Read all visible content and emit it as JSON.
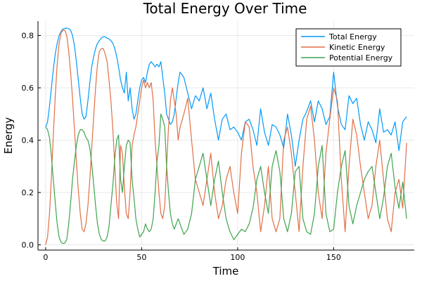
{
  "chart_data": {
    "type": "line",
    "title": "Total Energy Over Time",
    "xlabel": "Time",
    "ylabel": "Energy",
    "xlim": [
      -4,
      192
    ],
    "ylim": [
      -0.02,
      0.855
    ],
    "xticks": [
      0,
      50,
      100,
      150
    ],
    "xtick_labels": [
      "0",
      "50",
      "100",
      "150"
    ],
    "yticks": [
      0.0,
      0.2,
      0.4,
      0.6,
      0.8
    ],
    "ytick_labels": [
      "0.0",
      "0.2",
      "0.4",
      "0.6",
      "0.8"
    ],
    "grid": true,
    "legend_position": "top-right",
    "series": [
      {
        "name": "Total Energy",
        "color": "#009AF9",
        "x": [
          0,
          1,
          2,
          3,
          4,
          5,
          6,
          7,
          8,
          9,
          10,
          11,
          12,
          13,
          14,
          15,
          16,
          17,
          18,
          19,
          20,
          21,
          22,
          23,
          24,
          25,
          26,
          27,
          28,
          29,
          30,
          31,
          32,
          33,
          34,
          35,
          36,
          37,
          38,
          39,
          40,
          41,
          42,
          43,
          44,
          45,
          46,
          47,
          48,
          49,
          50,
          51,
          52,
          53,
          54,
          55,
          56,
          57,
          58,
          59,
          60,
          61,
          62,
          63,
          64,
          65,
          66,
          67,
          68,
          69,
          70,
          72,
          74,
          76,
          78,
          80,
          82,
          84,
          86,
          88,
          90,
          92,
          94,
          96,
          98,
          100,
          102,
          104,
          106,
          108,
          110,
          112,
          114,
          116,
          118,
          120,
          122,
          124,
          126,
          128,
          130,
          132,
          134,
          136,
          138,
          140,
          142,
          144,
          146,
          148,
          150,
          152,
          154,
          156,
          158,
          160,
          162,
          164,
          166,
          168,
          170,
          172,
          174,
          176,
          178,
          180,
          182,
          184,
          186,
          188
        ],
        "values": [
          0.45,
          0.47,
          0.53,
          0.6,
          0.67,
          0.73,
          0.77,
          0.8,
          0.815,
          0.825,
          0.827,
          0.828,
          0.826,
          0.82,
          0.8,
          0.76,
          0.7,
          0.63,
          0.56,
          0.5,
          0.48,
          0.49,
          0.55,
          0.62,
          0.68,
          0.72,
          0.75,
          0.77,
          0.78,
          0.79,
          0.795,
          0.795,
          0.79,
          0.787,
          0.78,
          0.77,
          0.75,
          0.72,
          0.68,
          0.63,
          0.6,
          0.58,
          0.66,
          0.55,
          0.6,
          0.52,
          0.48,
          0.5,
          0.55,
          0.6,
          0.63,
          0.64,
          0.62,
          0.66,
          0.69,
          0.7,
          0.69,
          0.68,
          0.69,
          0.68,
          0.7,
          0.64,
          0.58,
          0.5,
          0.48,
          0.46,
          0.47,
          0.5,
          0.56,
          0.62,
          0.66,
          0.64,
          0.58,
          0.52,
          0.57,
          0.55,
          0.6,
          0.52,
          0.58,
          0.48,
          0.4,
          0.48,
          0.5,
          0.44,
          0.45,
          0.43,
          0.4,
          0.47,
          0.48,
          0.44,
          0.38,
          0.52,
          0.43,
          0.38,
          0.46,
          0.45,
          0.42,
          0.37,
          0.5,
          0.42,
          0.3,
          0.4,
          0.48,
          0.51,
          0.55,
          0.47,
          0.55,
          0.52,
          0.46,
          0.49,
          0.66,
          0.53,
          0.46,
          0.44,
          0.57,
          0.54,
          0.56,
          0.46,
          0.4,
          0.47,
          0.44,
          0.39,
          0.52,
          0.43,
          0.44,
          0.42,
          0.47,
          0.36,
          0.47,
          0.49
        ]
      },
      {
        "name": "Kinetic Energy",
        "color": "#E26F46",
        "x": [
          0,
          1,
          2,
          3,
          4,
          5,
          6,
          7,
          8,
          9,
          10,
          11,
          12,
          13,
          14,
          15,
          16,
          17,
          18,
          19,
          20,
          21,
          22,
          23,
          24,
          25,
          26,
          27,
          28,
          29,
          30,
          31,
          32,
          33,
          34,
          35,
          36,
          37,
          38,
          39,
          40,
          41,
          42,
          43,
          44,
          45,
          46,
          47,
          48,
          49,
          50,
          51,
          52,
          53,
          54,
          55,
          56,
          57,
          58,
          59,
          60,
          61,
          62,
          63,
          64,
          65,
          66,
          67,
          68,
          69,
          70,
          72,
          74,
          76,
          78,
          80,
          82,
          84,
          86,
          88,
          90,
          92,
          94,
          96,
          98,
          100,
          102,
          104,
          106,
          108,
          110,
          112,
          114,
          116,
          118,
          120,
          122,
          124,
          126,
          128,
          130,
          132,
          134,
          136,
          138,
          140,
          142,
          144,
          146,
          148,
          150,
          152,
          154,
          156,
          158,
          160,
          162,
          164,
          166,
          168,
          170,
          172,
          174,
          176,
          178,
          180,
          182,
          184,
          186,
          188
        ],
        "values": [
          0.0,
          0.03,
          0.12,
          0.26,
          0.42,
          0.57,
          0.69,
          0.77,
          0.81,
          0.82,
          0.82,
          0.8,
          0.74,
          0.66,
          0.56,
          0.44,
          0.32,
          0.21,
          0.12,
          0.06,
          0.05,
          0.08,
          0.15,
          0.25,
          0.37,
          0.49,
          0.6,
          0.69,
          0.74,
          0.75,
          0.75,
          0.73,
          0.7,
          0.63,
          0.55,
          0.44,
          0.3,
          0.16,
          0.1,
          0.38,
          0.35,
          0.22,
          0.12,
          0.1,
          0.2,
          0.38,
          0.42,
          0.45,
          0.5,
          0.55,
          0.6,
          0.63,
          0.6,
          0.62,
          0.6,
          0.62,
          0.55,
          0.4,
          0.3,
          0.2,
          0.12,
          0.1,
          0.15,
          0.3,
          0.45,
          0.55,
          0.6,
          0.55,
          0.5,
          0.4,
          0.45,
          0.5,
          0.56,
          0.4,
          0.25,
          0.2,
          0.15,
          0.25,
          0.35,
          0.2,
          0.1,
          0.15,
          0.25,
          0.3,
          0.2,
          0.12,
          0.35,
          0.47,
          0.45,
          0.3,
          0.2,
          0.05,
          0.15,
          0.3,
          0.1,
          0.05,
          0.1,
          0.4,
          0.45,
          0.35,
          0.2,
          0.05,
          0.3,
          0.48,
          0.53,
          0.4,
          0.2,
          0.1,
          0.35,
          0.48,
          0.6,
          0.55,
          0.25,
          0.05,
          0.3,
          0.48,
          0.42,
          0.3,
          0.2,
          0.1,
          0.15,
          0.3,
          0.4,
          0.25,
          0.1,
          0.05,
          0.2,
          0.25,
          0.14,
          0.39
        ]
      },
      {
        "name": "Potential Energy",
        "color": "#3EA44E",
        "x": [
          0,
          1,
          2,
          3,
          4,
          5,
          6,
          7,
          8,
          9,
          10,
          11,
          12,
          13,
          14,
          15,
          16,
          17,
          18,
          19,
          20,
          21,
          22,
          23,
          24,
          25,
          26,
          27,
          28,
          29,
          30,
          31,
          32,
          33,
          34,
          35,
          36,
          37,
          38,
          39,
          40,
          41,
          42,
          43,
          44,
          45,
          46,
          47,
          48,
          49,
          50,
          51,
          52,
          53,
          54,
          55,
          56,
          57,
          58,
          59,
          60,
          61,
          62,
          63,
          64,
          65,
          66,
          67,
          68,
          69,
          70,
          72,
          74,
          76,
          78,
          80,
          82,
          84,
          86,
          88,
          90,
          92,
          94,
          96,
          98,
          100,
          102,
          104,
          106,
          108,
          110,
          112,
          114,
          116,
          118,
          120,
          122,
          124,
          126,
          128,
          130,
          132,
          134,
          136,
          138,
          140,
          142,
          144,
          146,
          148,
          150,
          152,
          154,
          156,
          158,
          160,
          162,
          164,
          166,
          168,
          170,
          172,
          174,
          176,
          178,
          180,
          182,
          184,
          186,
          188
        ],
        "values": [
          0.45,
          0.44,
          0.41,
          0.34,
          0.25,
          0.16,
          0.08,
          0.03,
          0.01,
          0.005,
          0.007,
          0.02,
          0.08,
          0.16,
          0.25,
          0.32,
          0.38,
          0.42,
          0.44,
          0.44,
          0.43,
          0.41,
          0.4,
          0.37,
          0.31,
          0.23,
          0.15,
          0.08,
          0.04,
          0.02,
          0.015,
          0.015,
          0.03,
          0.07,
          0.15,
          0.23,
          0.33,
          0.4,
          0.42,
          0.25,
          0.2,
          0.3,
          0.38,
          0.4,
          0.39,
          0.25,
          0.18,
          0.1,
          0.06,
          0.03,
          0.04,
          0.05,
          0.08,
          0.06,
          0.05,
          0.06,
          0.1,
          0.2,
          0.32,
          0.38,
          0.5,
          0.48,
          0.45,
          0.3,
          0.2,
          0.12,
          0.08,
          0.06,
          0.08,
          0.1,
          0.08,
          0.04,
          0.06,
          0.12,
          0.25,
          0.3,
          0.35,
          0.25,
          0.15,
          0.25,
          0.32,
          0.2,
          0.1,
          0.05,
          0.02,
          0.04,
          0.06,
          0.05,
          0.08,
          0.14,
          0.25,
          0.3,
          0.2,
          0.12,
          0.3,
          0.36,
          0.28,
          0.1,
          0.05,
          0.12,
          0.28,
          0.3,
          0.1,
          0.05,
          0.04,
          0.12,
          0.3,
          0.38,
          0.12,
          0.05,
          0.06,
          0.2,
          0.3,
          0.36,
          0.15,
          0.08,
          0.15,
          0.2,
          0.25,
          0.28,
          0.3,
          0.2,
          0.1,
          0.18,
          0.3,
          0.35,
          0.22,
          0.14,
          0.24,
          0.1
        ]
      }
    ]
  }
}
